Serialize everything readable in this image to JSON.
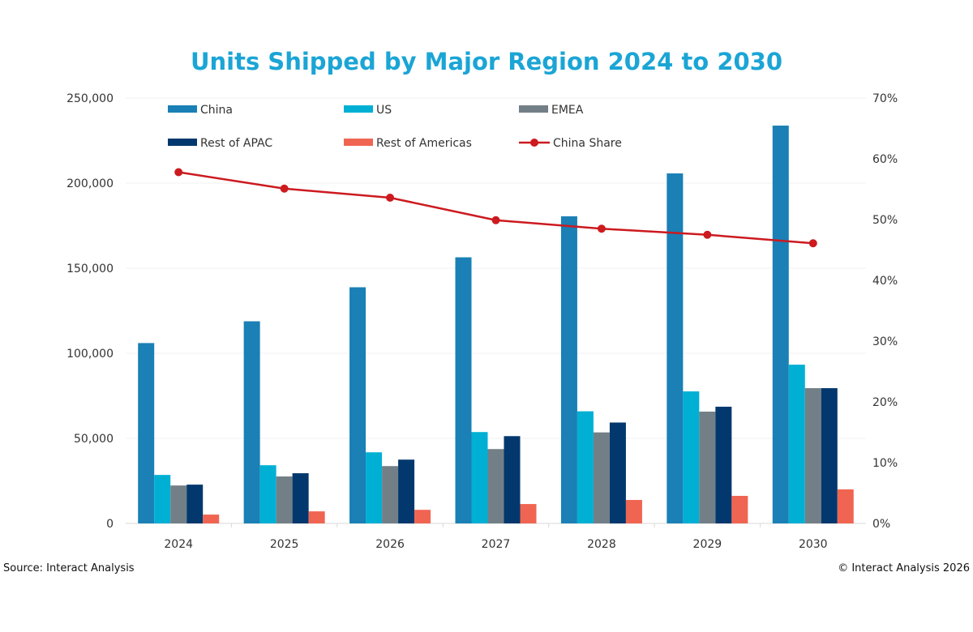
{
  "chart_data": {
    "type": "bar",
    "title": "Units Shipped by Major Region 2024 to 2030",
    "categories": [
      "2024",
      "2025",
      "2026",
      "2027",
      "2028",
      "2029",
      "2030"
    ],
    "ylim": [
      0,
      250000
    ],
    "y_ticks": [
      "0",
      "50,000",
      "100,000",
      "150,000",
      "200,000",
      "250,000"
    ],
    "y2lim": [
      0,
      70
    ],
    "y2_ticks": [
      "0%",
      "10%",
      "20%",
      "30%",
      "40%",
      "50%",
      "60%",
      "70%"
    ],
    "grid": true,
    "legend_position": "top",
    "series": [
      {
        "name": "China",
        "type": "bar",
        "color": "#1a80b5",
        "values": [
          106000,
          118800,
          138800,
          156400,
          180500,
          205700,
          233800
        ]
      },
      {
        "name": "US",
        "type": "bar",
        "color": "#00b0d4",
        "values": [
          28500,
          34200,
          41800,
          53700,
          65900,
          77600,
          93300
        ]
      },
      {
        "name": "EMEA",
        "type": "bar",
        "color": "#737f87",
        "values": [
          22300,
          27600,
          33700,
          43700,
          53500,
          65700,
          79500
        ]
      },
      {
        "name": "Rest of APAC",
        "type": "bar",
        "color": "#02386e",
        "values": [
          22800,
          29500,
          37500,
          51300,
          59300,
          68600,
          79500
        ]
      },
      {
        "name": "Rest of Americas",
        "type": "bar",
        "color": "#f06552",
        "values": [
          5200,
          7100,
          8000,
          11400,
          13800,
          16200,
          20000
        ]
      },
      {
        "name": "China Share",
        "type": "line",
        "axis": "right",
        "unit": "%",
        "color": "#cc1a1f",
        "values": [
          57.8,
          55.1,
          53.6,
          49.9,
          48.5,
          47.5,
          46.1
        ]
      }
    ]
  },
  "title_color": "#1ba5d5",
  "footer": {
    "source": "Source: Interact Analysis",
    "copyright": "© Interact Analysis 2026"
  }
}
